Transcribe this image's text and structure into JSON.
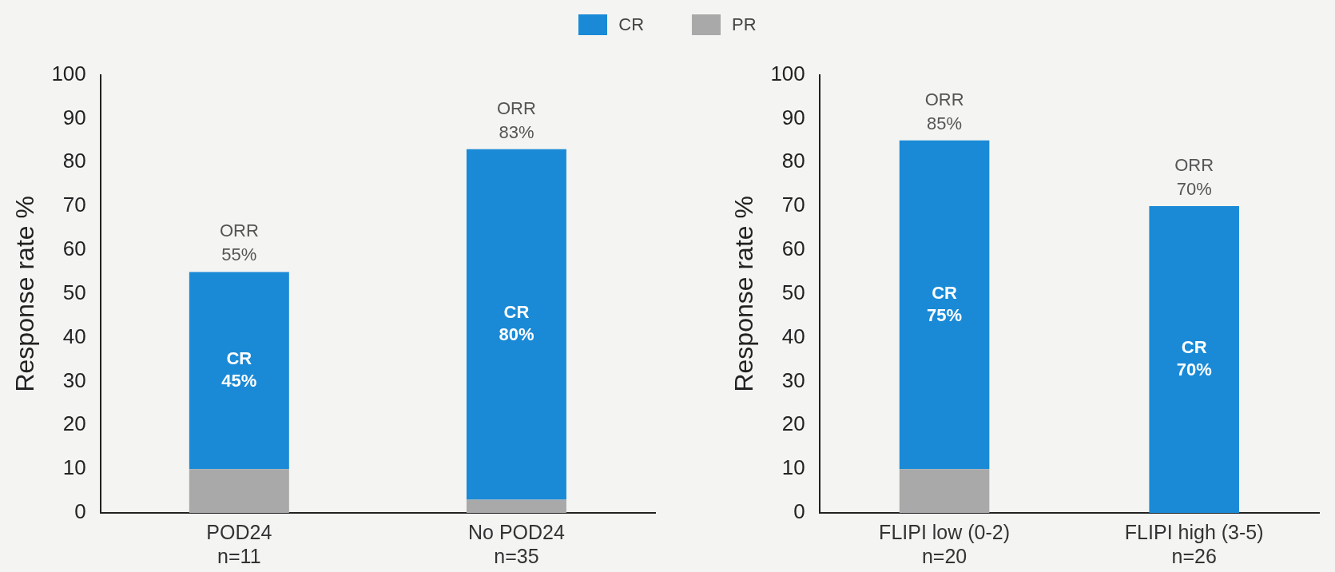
{
  "chart_data": [
    {
      "type": "bar",
      "stacked": true,
      "ylabel": "Response rate %",
      "categories": [
        "POD24\nn=11",
        "No POD24\nn=35"
      ],
      "ylim": [
        0,
        100
      ],
      "yticks": [
        0,
        10,
        20,
        30,
        40,
        50,
        60,
        70,
        80,
        90,
        100
      ],
      "grid": false,
      "legend": "top",
      "series": [
        {
          "name": "PR",
          "color": "#a9a9a9",
          "values": [
            10,
            3
          ]
        },
        {
          "name": "CR",
          "color": "#1a8ad6",
          "values": [
            45,
            80
          ],
          "value_labels": [
            "CR\n45%",
            "CR\n80%"
          ]
        }
      ],
      "totals": [
        "ORR\n55%",
        "ORR\n83%"
      ]
    },
    {
      "type": "bar",
      "stacked": true,
      "ylabel": "Response rate %",
      "categories": [
        "FLIPI low (0-2)\nn=20",
        "FLIPI high (3-5)\nn=26"
      ],
      "ylim": [
        0,
        100
      ],
      "yticks": [
        0,
        10,
        20,
        30,
        40,
        50,
        60,
        70,
        80,
        90,
        100
      ],
      "grid": false,
      "series": [
        {
          "color": "#a9a9a9",
          "values": [
            10,
            0
          ]
        },
        {
          "color": "#1a8ad6",
          "values": [
            75,
            70
          ],
          "value_labels": [
            "CR\n75%",
            "CR\n70%"
          ]
        }
      ],
      "totals": [
        "ORR\n85%",
        "ORR\n70%"
      ]
    }
  ]
}
